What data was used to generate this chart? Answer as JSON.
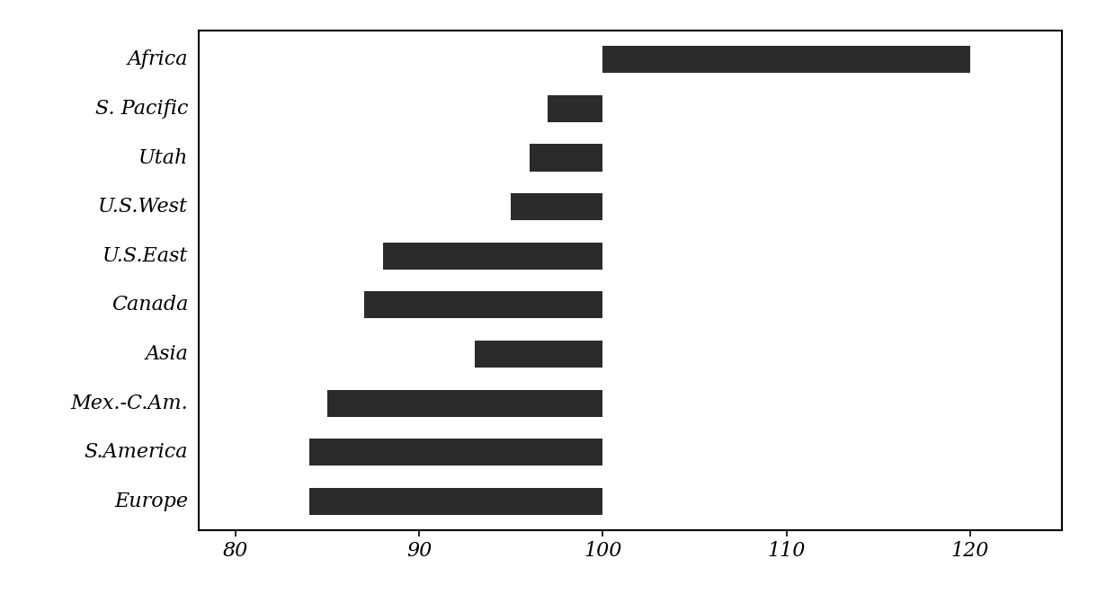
{
  "categories": [
    "Africa",
    "S. Pacific",
    "Utah",
    "U.S.West",
    "U.S.East",
    "Canada",
    "Asia",
    "Mex.-C.Am.",
    "S.America",
    "Europe"
  ],
  "bar_left": [
    100,
    97,
    96,
    95,
    88,
    87,
    93,
    85,
    84,
    84
  ],
  "bar_right": [
    120,
    100,
    100,
    100,
    100,
    100,
    100,
    100,
    100,
    100
  ],
  "xlim": [
    78,
    125
  ],
  "xticks": [
    80,
    90,
    100,
    110,
    120
  ],
  "bar_color": "#2b2b2b",
  "background_color": "#ffffff",
  "bar_height": 0.55,
  "label_fontsize": 16,
  "tick_fontsize": 16
}
